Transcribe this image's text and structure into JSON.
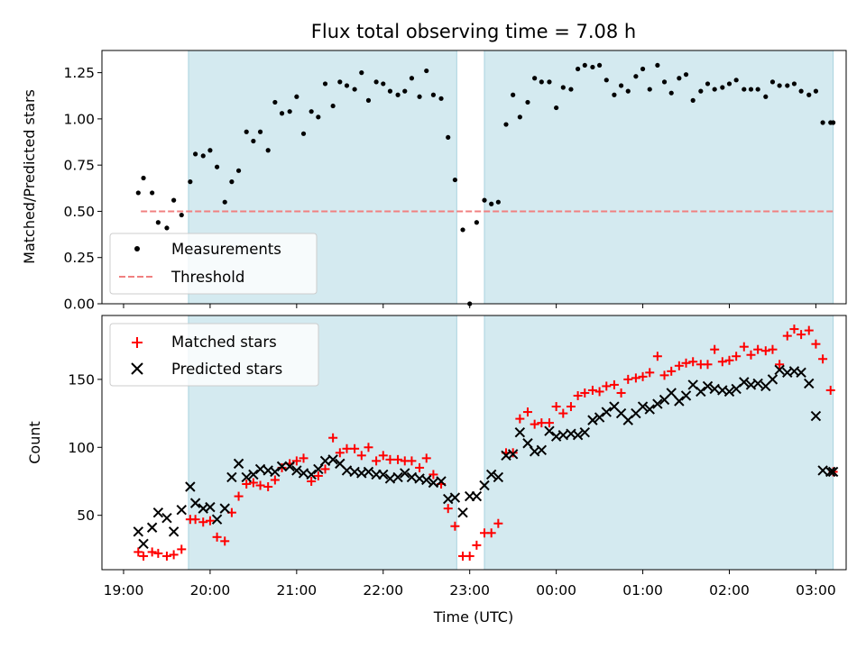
{
  "colors": {
    "shade": "#d4eaf0",
    "shade_edge": "#a9d3df",
    "measure": "#000000",
    "threshold": "#f08080",
    "matched": "#ff0000",
    "predicted": "#000000"
  },
  "chart_data": [
    {
      "type": "scatter",
      "title": "Flux total observing time = 7.08 h",
      "ylabel": "Matched/Predicted stars",
      "ylim": [
        0,
        1.37
      ],
      "yticks": [
        "0.00",
        "0.25",
        "0.50",
        "0.75",
        "1.00",
        "1.25"
      ],
      "ytick_values": [
        0,
        0.25,
        0.5,
        0.75,
        1.0,
        1.25
      ],
      "xlim": [
        -0.25,
        8.35
      ],
      "shaded_intervals": [
        [
          0.75,
          3.85
        ],
        [
          4.17,
          8.2
        ]
      ],
      "threshold": {
        "name": "Threshold",
        "y": 0.5,
        "x": [
          0.2,
          8.2
        ],
        "style": "dashed"
      },
      "legend": {
        "position": "lower-left",
        "entries": [
          "Measurements",
          "Threshold"
        ]
      },
      "series": [
        {
          "name": "Measurements",
          "marker": "dot",
          "x": [
            0.17,
            0.23,
            0.33,
            0.4,
            0.5,
            0.58,
            0.67,
            0.77,
            0.83,
            0.92,
            1.0,
            1.08,
            1.17,
            1.25,
            1.33,
            1.42,
            1.5,
            1.58,
            1.67,
            1.75,
            1.83,
            1.92,
            2.0,
            2.08,
            2.17,
            2.25,
            2.33,
            2.42,
            2.5,
            2.58,
            2.67,
            2.75,
            2.83,
            2.92,
            3.0,
            3.08,
            3.17,
            3.25,
            3.33,
            3.42,
            3.5,
            3.58,
            3.67,
            3.75,
            3.83,
            3.92,
            4.0,
            4.08,
            4.17,
            4.25,
            4.33,
            4.42,
            4.5,
            4.58,
            4.67,
            4.75,
            4.83,
            4.92,
            5.0,
            5.08,
            5.17,
            5.25,
            5.33,
            5.42,
            5.5,
            5.58,
            5.67,
            5.75,
            5.83,
            5.92,
            6.0,
            6.08,
            6.17,
            6.25,
            6.33,
            6.42,
            6.5,
            6.58,
            6.67,
            6.75,
            6.83,
            6.92,
            7.0,
            7.08,
            7.17,
            7.25,
            7.33,
            7.42,
            7.5,
            7.58,
            7.67,
            7.75,
            7.83,
            7.92,
            8.0,
            8.08,
            8.17,
            8.2
          ],
          "y": [
            0.6,
            0.68,
            0.6,
            0.44,
            0.41,
            0.56,
            0.48,
            0.66,
            0.81,
            0.8,
            0.83,
            0.74,
            0.55,
            0.66,
            0.72,
            0.93,
            0.88,
            0.93,
            0.83,
            1.09,
            1.03,
            1.04,
            1.12,
            0.92,
            1.04,
            1.01,
            1.19,
            1.07,
            1.2,
            1.18,
            1.16,
            1.25,
            1.1,
            1.2,
            1.19,
            1.15,
            1.13,
            1.15,
            1.22,
            1.12,
            1.26,
            1.13,
            1.11,
            0.9,
            0.67,
            0.4,
            0.0,
            0.44,
            0.56,
            0.54,
            0.55,
            0.97,
            1.13,
            1.01,
            1.09,
            1.22,
            1.2,
            1.2,
            1.06,
            1.17,
            1.16,
            1.27,
            1.29,
            1.28,
            1.29,
            1.21,
            1.13,
            1.18,
            1.15,
            1.23,
            1.27,
            1.16,
            1.29,
            1.2,
            1.14,
            1.22,
            1.24,
            1.1,
            1.15,
            1.19,
            1.16,
            1.17,
            1.19,
            1.21,
            1.16,
            1.16,
            1.16,
            1.12,
            1.2,
            1.18,
            1.18,
            1.19,
            1.15,
            1.13,
            1.15,
            0.98,
            0.98,
            0.98
          ]
        }
      ]
    },
    {
      "type": "scatter",
      "xlabel": "Time (UTC)",
      "ylabel": "Count",
      "ylim": [
        10,
        197
      ],
      "yticks": [
        "50",
        "100",
        "150"
      ],
      "ytick_values": [
        50,
        100,
        150
      ],
      "xlim": [
        -0.25,
        8.35
      ],
      "xticks": [
        "19:00",
        "20:00",
        "21:00",
        "22:00",
        "23:00",
        "00:00",
        "01:00",
        "02:00",
        "03:00"
      ],
      "xtick_values": [
        0,
        1,
        2,
        3,
        4,
        5,
        6,
        7,
        8
      ],
      "shaded_intervals": [
        [
          0.75,
          3.85
        ],
        [
          4.17,
          8.2
        ]
      ],
      "legend": {
        "position": "upper-left",
        "entries": [
          "Matched stars",
          "Predicted stars"
        ]
      },
      "series": [
        {
          "name": "Matched stars",
          "marker": "plus",
          "x": [
            0.17,
            0.23,
            0.33,
            0.4,
            0.5,
            0.58,
            0.67,
            0.77,
            0.83,
            0.92,
            1.0,
            1.08,
            1.17,
            1.25,
            1.33,
            1.42,
            1.5,
            1.58,
            1.67,
            1.75,
            1.83,
            1.92,
            2.0,
            2.08,
            2.17,
            2.25,
            2.33,
            2.42,
            2.5,
            2.58,
            2.67,
            2.75,
            2.83,
            2.92,
            3.0,
            3.08,
            3.17,
            3.25,
            3.33,
            3.42,
            3.5,
            3.58,
            3.67,
            3.75,
            3.83,
            3.92,
            4.0,
            4.08,
            4.17,
            4.25,
            4.33,
            4.42,
            4.5,
            4.58,
            4.67,
            4.75,
            4.83,
            4.92,
            5.0,
            5.08,
            5.17,
            5.25,
            5.33,
            5.42,
            5.5,
            5.58,
            5.67,
            5.75,
            5.83,
            5.92,
            6.0,
            6.08,
            6.17,
            6.25,
            6.33,
            6.42,
            6.5,
            6.58,
            6.67,
            6.75,
            6.83,
            6.92,
            7.0,
            7.08,
            7.17,
            7.25,
            7.33,
            7.42,
            7.5,
            7.58,
            7.67,
            7.75,
            7.83,
            7.92,
            8.0,
            8.08,
            8.17,
            8.2
          ],
          "y": [
            23,
            20,
            23,
            22,
            20,
            21,
            25,
            47,
            47,
            45,
            46,
            34,
            31,
            52,
            64,
            73,
            74,
            72,
            71,
            76,
            85,
            88,
            90,
            92,
            75,
            79,
            84,
            107,
            96,
            99,
            99,
            94,
            100,
            90,
            94,
            91,
            91,
            90,
            90,
            85,
            92,
            80,
            73,
            55,
            42,
            20,
            20,
            28,
            37,
            37,
            44,
            96,
            96,
            121,
            126,
            117,
            118,
            118,
            130,
            125,
            130,
            138,
            140,
            142,
            141,
            145,
            146,
            140,
            150,
            151,
            152,
            155,
            167,
            153,
            156,
            160,
            162,
            163,
            161,
            161,
            172,
            163,
            164,
            167,
            174,
            168,
            172,
            171,
            172,
            161,
            182,
            187,
            183,
            186,
            176,
            165,
            142,
            82
          ]
        },
        {
          "name": "Predicted stars",
          "marker": "x",
          "x": [
            0.17,
            0.23,
            0.33,
            0.4,
            0.5,
            0.58,
            0.67,
            0.77,
            0.83,
            0.92,
            1.0,
            1.08,
            1.17,
            1.25,
            1.33,
            1.42,
            1.5,
            1.58,
            1.67,
            1.75,
            1.83,
            1.92,
            2.0,
            2.08,
            2.17,
            2.25,
            2.33,
            2.42,
            2.5,
            2.58,
            2.67,
            2.75,
            2.83,
            2.92,
            3.0,
            3.08,
            3.17,
            3.25,
            3.33,
            3.42,
            3.5,
            3.58,
            3.67,
            3.75,
            3.83,
            3.92,
            4.0,
            4.08,
            4.17,
            4.25,
            4.33,
            4.42,
            4.5,
            4.58,
            4.67,
            4.75,
            4.83,
            4.92,
            5.0,
            5.08,
            5.17,
            5.25,
            5.33,
            5.42,
            5.5,
            5.58,
            5.67,
            5.75,
            5.83,
            5.92,
            6.0,
            6.08,
            6.17,
            6.25,
            6.33,
            6.42,
            6.5,
            6.58,
            6.67,
            6.75,
            6.83,
            6.92,
            7.0,
            7.08,
            7.17,
            7.25,
            7.33,
            7.42,
            7.5,
            7.58,
            7.67,
            7.75,
            7.83,
            7.92,
            8.0,
            8.08,
            8.17,
            8.2
          ],
          "y": [
            38,
            29,
            41,
            52,
            48,
            38,
            54,
            71,
            59,
            55,
            56,
            47,
            55,
            78,
            88,
            78,
            80,
            84,
            83,
            82,
            86,
            86,
            83,
            81,
            80,
            84,
            90,
            91,
            88,
            83,
            82,
            81,
            82,
            80,
            80,
            77,
            78,
            81,
            78,
            77,
            76,
            74,
            75,
            62,
            63,
            52,
            64,
            64,
            72,
            80,
            78,
            94,
            95,
            111,
            103,
            97,
            98,
            112,
            108,
            109,
            110,
            109,
            111,
            120,
            122,
            126,
            130,
            125,
            120,
            125,
            130,
            128,
            132,
            135,
            140,
            134,
            138,
            146,
            141,
            145,
            143,
            142,
            141,
            143,
            148,
            146,
            147,
            145,
            150,
            157,
            155,
            156,
            155,
            147,
            123,
            83,
            82,
            82
          ]
        }
      ]
    }
  ]
}
